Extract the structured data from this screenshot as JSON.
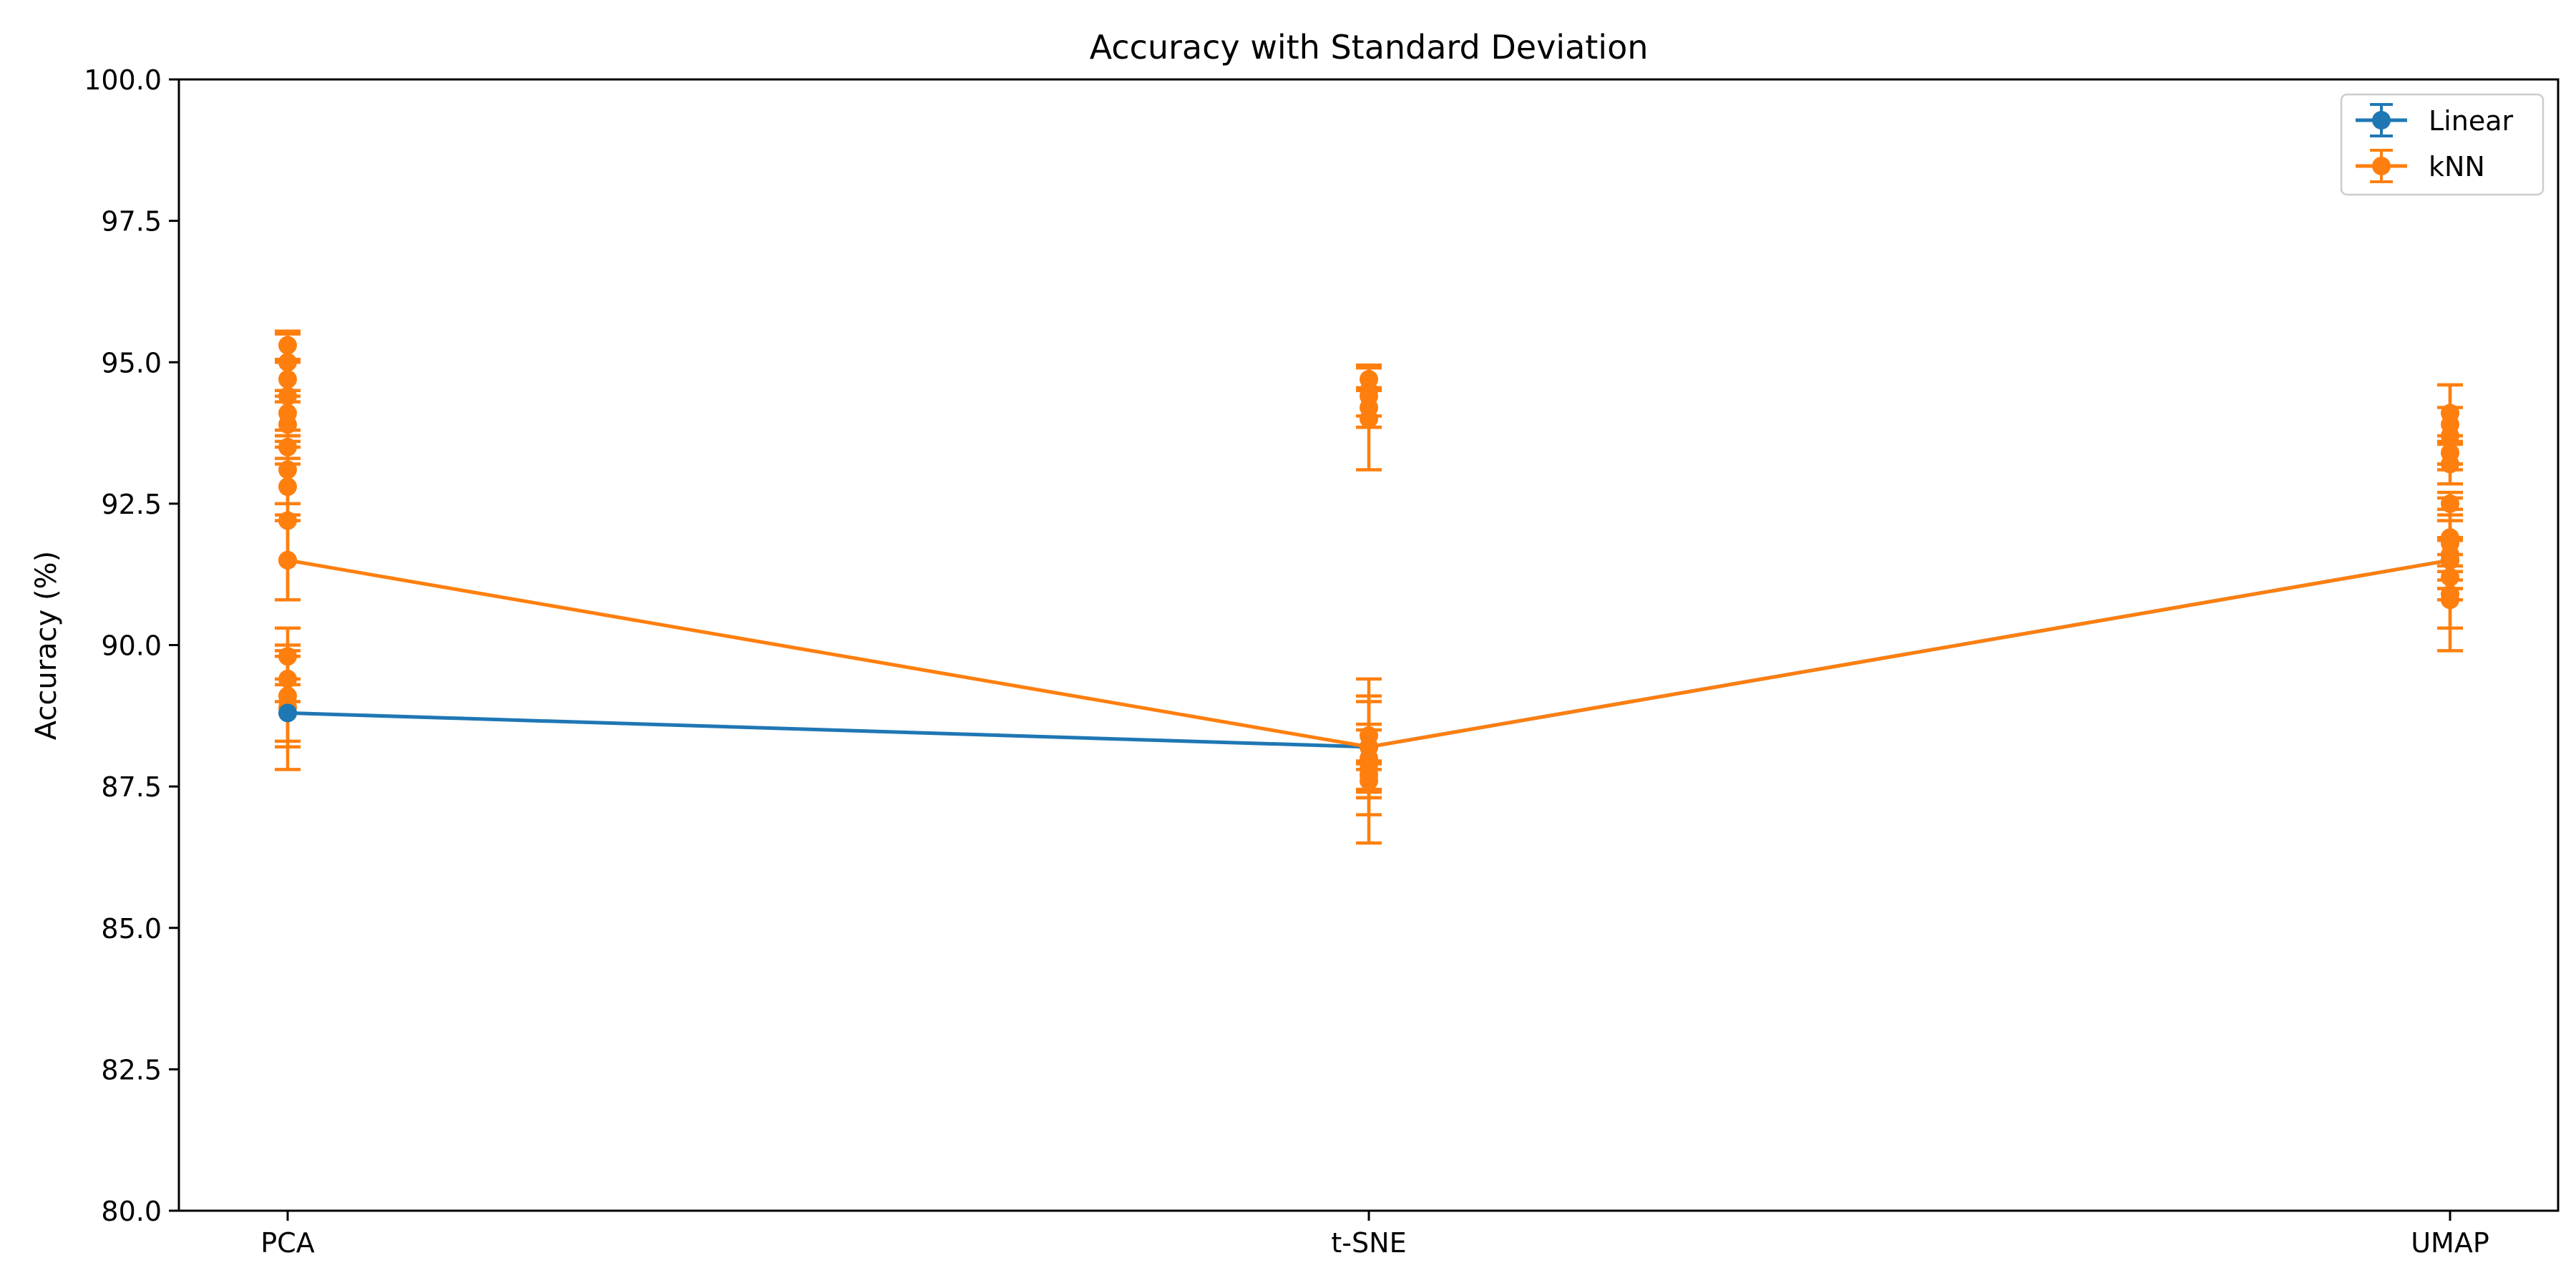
{
  "chart_data": {
    "type": "line",
    "title": "Accuracy with Standard Deviation",
    "xlabel": "",
    "ylabel": "Accuracy (%)",
    "categories": [
      "PCA",
      "t-SNE",
      "UMAP"
    ],
    "ylim": [
      80.0,
      100.0
    ],
    "yticks": [
      "80.0",
      "82.5",
      "85.0",
      "87.5",
      "90.0",
      "92.5",
      "95.0",
      "97.5",
      "100.0"
    ],
    "grid": false,
    "legend_position": "top-right",
    "series": [
      {
        "name": "Linear",
        "color": "#1f77b4",
        "marker": "circle",
        "values": [
          88.8,
          88.2,
          91.5
        ],
        "errors": [
          0.0,
          0.0,
          0.0
        ]
      },
      {
        "name": "kNN",
        "color": "#ff7f0e",
        "marker": "circle",
        "values": [
          91.5,
          88.2,
          91.5
        ],
        "errors": [
          0.0,
          0.0,
          0.0
        ]
      }
    ],
    "error_points": {
      "color": "#ff7f0e",
      "points": [
        {
          "x": "PCA",
          "y": 95.3,
          "err": 0.25
        },
        {
          "x": "PCA",
          "y": 95.0,
          "err": 0.5
        },
        {
          "x": "PCA",
          "y": 94.7,
          "err": 0.3
        },
        {
          "x": "PCA",
          "y": 94.4,
          "err": 0.6
        },
        {
          "x": "PCA",
          "y": 94.1,
          "err": 0.4
        },
        {
          "x": "PCA",
          "y": 93.9,
          "err": 0.4
        },
        {
          "x": "PCA",
          "y": 93.5,
          "err": 0.3
        },
        {
          "x": "PCA",
          "y": 93.1,
          "err": 0.6
        },
        {
          "x": "PCA",
          "y": 92.8,
          "err": 0.5
        },
        {
          "x": "PCA",
          "y": 92.2,
          "err": 1.4
        },
        {
          "x": "PCA",
          "y": 91.5,
          "err": 0.7
        },
        {
          "x": "PCA",
          "y": 89.8,
          "err": 0.5
        },
        {
          "x": "PCA",
          "y": 89.4,
          "err": 0.4
        },
        {
          "x": "PCA",
          "y": 89.1,
          "err": 0.8
        },
        {
          "x": "PCA",
          "y": 88.9,
          "err": 1.1
        },
        {
          "x": "PCA",
          "y": 88.8,
          "err": 0.6
        },
        {
          "x": "t-SNE",
          "y": 94.7,
          "err": 0.2
        },
        {
          "x": "t-SNE",
          "y": 94.5,
          "err": 0.45
        },
        {
          "x": "t-SNE",
          "y": 94.4,
          "err": 0.55
        },
        {
          "x": "t-SNE",
          "y": 94.2,
          "err": 0.35
        },
        {
          "x": "t-SNE",
          "y": 94.0,
          "err": 0.9
        },
        {
          "x": "t-SNE",
          "y": 88.4,
          "err": 1.0
        },
        {
          "x": "t-SNE",
          "y": 88.2,
          "err": 0.4
        },
        {
          "x": "t-SNE",
          "y": 88.0,
          "err": 1.0
        },
        {
          "x": "t-SNE",
          "y": 87.9,
          "err": 0.6
        },
        {
          "x": "t-SNE",
          "y": 87.8,
          "err": 1.3
        },
        {
          "x": "t-SNE",
          "y": 87.7,
          "err": 0.25
        },
        {
          "x": "t-SNE",
          "y": 87.6,
          "err": 0.3
        },
        {
          "x": "UMAP",
          "y": 94.1,
          "err": 0.5
        },
        {
          "x": "UMAP",
          "y": 93.9,
          "err": 0.7
        },
        {
          "x": "UMAP",
          "y": 93.7,
          "err": 0.5
        },
        {
          "x": "UMAP",
          "y": 93.4,
          "err": 0.3
        },
        {
          "x": "UMAP",
          "y": 93.2,
          "err": 0.35
        },
        {
          "x": "UMAP",
          "y": 92.5,
          "err": 0.2
        },
        {
          "x": "UMAP",
          "y": 91.9,
          "err": 0.5
        },
        {
          "x": "UMAP",
          "y": 91.8,
          "err": 0.8
        },
        {
          "x": "UMAP",
          "y": 91.6,
          "err": 0.6
        },
        {
          "x": "UMAP",
          "y": 91.5,
          "err": 0.35
        },
        {
          "x": "UMAP",
          "y": 91.2,
          "err": 0.4
        },
        {
          "x": "UMAP",
          "y": 90.9,
          "err": 1.0
        },
        {
          "x": "UMAP",
          "y": 90.8,
          "err": 0.5
        }
      ]
    }
  }
}
